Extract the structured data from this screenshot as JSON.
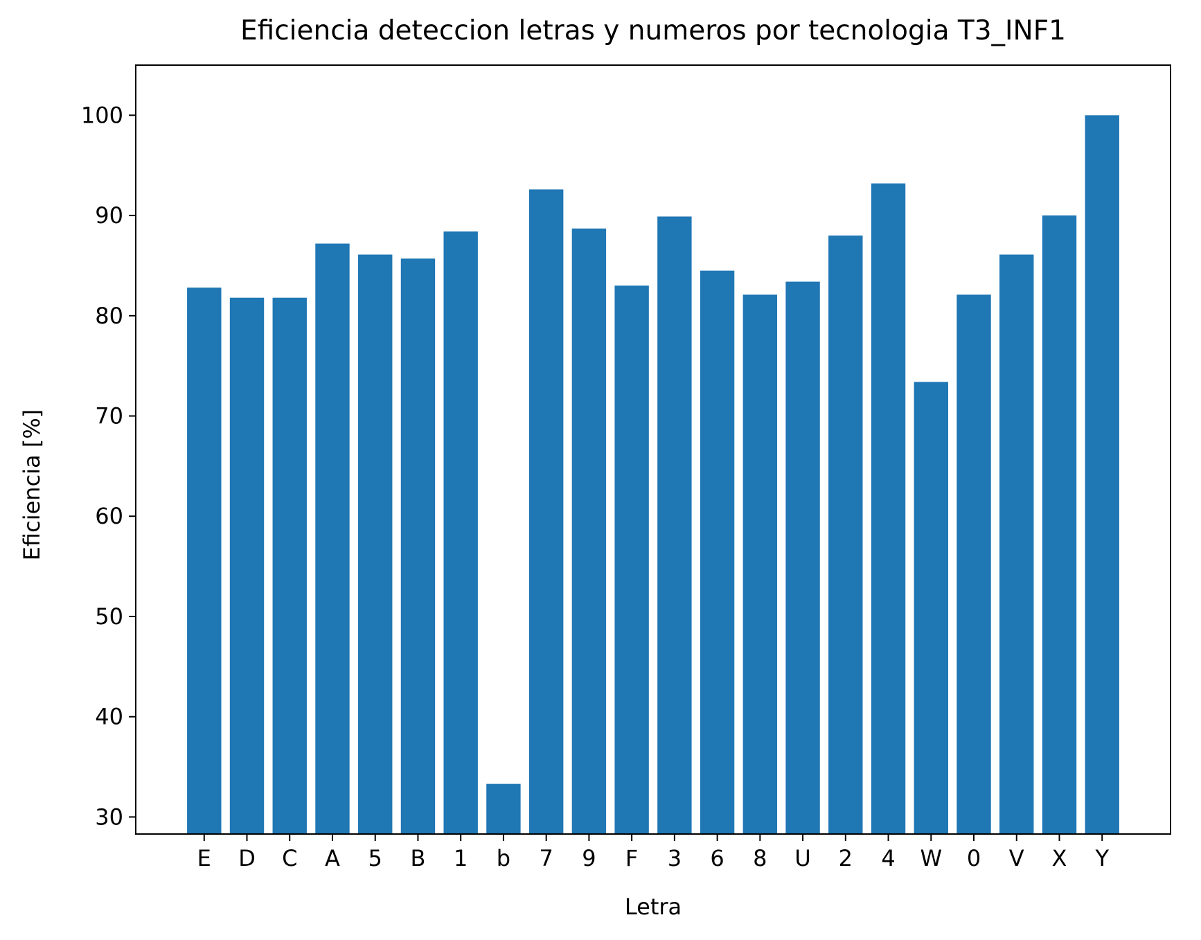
{
  "chart_data": {
    "type": "bar",
    "title": "Eficiencia deteccion letras y numeros por tecnologia T3_INF1",
    "xlabel": "Letra",
    "ylabel": "Eficiencia [%]",
    "categories": [
      "E",
      "D",
      "C",
      "A",
      "5",
      "B",
      "1",
      "b",
      "7",
      "9",
      "F",
      "3",
      "6",
      "8",
      "U",
      "2",
      "4",
      "W",
      "0",
      "V",
      "X",
      "Y"
    ],
    "values": [
      82.8,
      81.8,
      81.8,
      87.2,
      86.1,
      85.7,
      88.4,
      33.3,
      92.6,
      88.7,
      83.0,
      89.9,
      84.5,
      82.1,
      83.4,
      88.0,
      93.2,
      73.4,
      82.1,
      86.1,
      90.0,
      100.0
    ],
    "ylim": [
      28.3,
      105.0
    ],
    "yticks": [
      30,
      40,
      50,
      60,
      70,
      80,
      90,
      100
    ],
    "bar_color": "#1f77b4",
    "grid": false,
    "legend": "none"
  }
}
